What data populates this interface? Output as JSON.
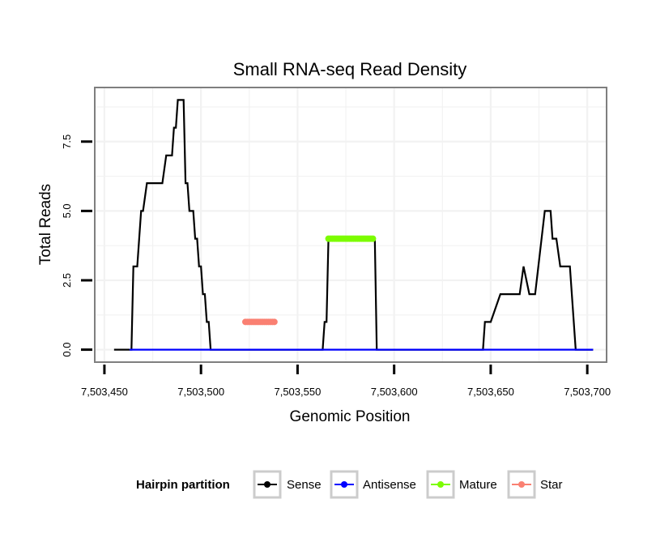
{
  "chart_data": {
    "type": "line",
    "title": "Small RNA-seq Read Density",
    "xlabel": "Genomic Position",
    "ylabel": "Total Reads",
    "xlim": [
      7503445,
      7503710
    ],
    "ylim": [
      -0.45,
      9.45
    ],
    "grid": true,
    "x_ticks": [
      7503450,
      7503500,
      7503550,
      7503600,
      7503650,
      7503700
    ],
    "x_tick_labels": [
      "7,503,450",
      "7,503,500",
      "7,503,550",
      "7,503,600",
      "7,503,650",
      "7,503,700"
    ],
    "y_ticks": [
      0,
      2.5,
      5,
      7.5
    ],
    "y_tick_labels": [
      "0.0",
      "2.5",
      "5.0",
      "7.5"
    ],
    "legend": {
      "title": "Hairpin partition",
      "placement": "bottom",
      "entries": [
        "Sense",
        "Antisense",
        "Mature",
        "Star"
      ]
    },
    "series": [
      {
        "name": "Sense",
        "color": "#000000",
        "step": true,
        "markers": false,
        "x": [
          7503455,
          7503463,
          7503464,
          7503465,
          7503467,
          7503468,
          7503469,
          7503470,
          7503472,
          7503480,
          7503482,
          7503484,
          7503485,
          7503486,
          7503487,
          7503488,
          7503489,
          7503490,
          7503491,
          7503492,
          7503493,
          7503494,
          7503495,
          7503496,
          7503497,
          7503498,
          7503499,
          7503500,
          7503501,
          7503502,
          7503503,
          7503504,
          7503505,
          7503506,
          7503507,
          7503508,
          7503509,
          7503510,
          7503511,
          7503563,
          7503564,
          7503565,
          7503566,
          7503590,
          7503591,
          7503646,
          7503647,
          7503650,
          7503655,
          7503657,
          7503665,
          7503667,
          7503670,
          7503673,
          7503678,
          7503680,
          7503681,
          7503682,
          7503683,
          7503684,
          7503686,
          7503689,
          7503690,
          7503691,
          7503692,
          7503694,
          7503697,
          7503700,
          7503701,
          7503702,
          7503703
        ],
        "y": [
          0,
          0,
          0,
          3,
          3,
          4,
          5,
          5,
          6,
          6,
          7,
          7,
          7,
          8,
          8,
          9,
          9,
          9,
          9,
          6,
          6,
          5,
          5,
          5,
          4,
          4,
          3,
          3,
          2,
          2,
          1,
          1,
          0,
          0,
          0,
          0,
          0,
          0,
          0,
          0,
          1,
          1,
          4,
          4,
          0,
          0,
          1,
          1,
          2,
          2,
          2,
          3,
          2,
          2,
          5,
          5,
          5,
          4,
          4,
          4,
          3,
          3,
          3,
          3,
          2,
          0,
          0,
          0,
          0,
          0,
          0
        ]
      },
      {
        "name": "Antisense",
        "color": "#0000ff",
        "step": true,
        "markers": false,
        "x": [
          7503463,
          7503703
        ],
        "y": [
          0,
          0
        ]
      },
      {
        "name": "Mature",
        "color": "#7cfc00",
        "step": false,
        "markers": true,
        "x": [
          7503566,
          7503567,
          7503568,
          7503569,
          7503570,
          7503571,
          7503572,
          7503573,
          7503574,
          7503575,
          7503576,
          7503577,
          7503578,
          7503579,
          7503580,
          7503581,
          7503582,
          7503583,
          7503584,
          7503585,
          7503586,
          7503587,
          7503588,
          7503589
        ],
        "y": [
          4,
          4,
          4,
          4,
          4,
          4,
          4,
          4,
          4,
          4,
          4,
          4,
          4,
          4,
          4,
          4,
          4,
          4,
          4,
          4,
          4,
          4,
          4,
          4
        ]
      },
      {
        "name": "Star",
        "color": "#fa8072",
        "step": false,
        "markers": true,
        "x": [
          7503523,
          7503524,
          7503525,
          7503526,
          7503527,
          7503528,
          7503529,
          7503530,
          7503531,
          7503532,
          7503533,
          7503534,
          7503535,
          7503536,
          7503537,
          7503538
        ],
        "y": [
          1,
          1,
          1,
          1,
          1,
          1,
          1,
          1,
          1,
          1,
          1,
          1,
          1,
          1,
          1,
          1
        ]
      }
    ]
  }
}
